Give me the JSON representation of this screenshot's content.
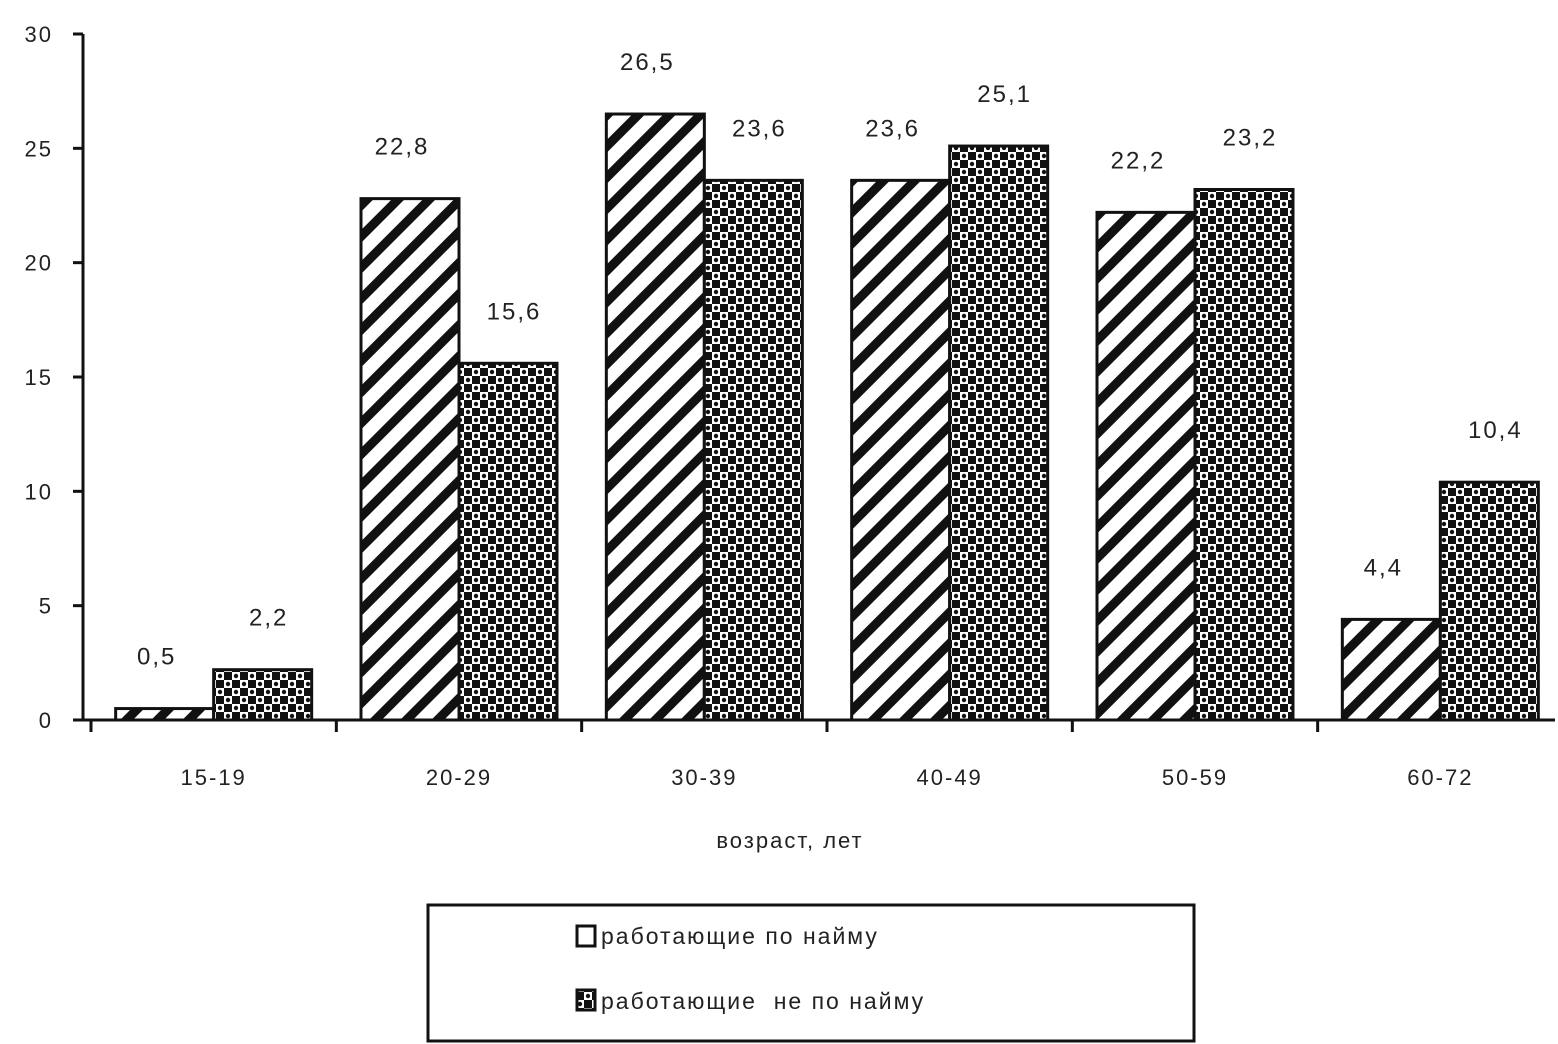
{
  "chart_data": {
    "type": "bar",
    "categories": [
      "15-19",
      "20-29",
      "30-39",
      "40-49",
      "50-59",
      "60-72"
    ],
    "series": [
      {
        "name": "работающие по найму",
        "values": [
          0.5,
          22.8,
          26.5,
          23.6,
          22.2,
          4.4
        ],
        "labels": [
          "0,5",
          "22,8",
          "26,5",
          "23,6",
          "22,2",
          "4,4"
        ],
        "pattern": "diagonal-hatch"
      },
      {
        "name": "работающие  не по найму",
        "values": [
          2.2,
          15.6,
          23.6,
          25.1,
          23.2,
          10.4
        ],
        "labels": [
          "2,2",
          "15,6",
          "23,6",
          "25,1",
          "23,2",
          "10,4"
        ],
        "pattern": "checker-dots"
      }
    ],
    "y_ticks": [
      "0",
      "5",
      "10",
      "15",
      "20",
      "25",
      "30"
    ],
    "ylim": [
      0,
      30
    ],
    "xlabel": "возраст, лет",
    "ylabel": "",
    "title": "",
    "legend_position": "bottom-center",
    "grid": false
  },
  "colors": {
    "ink": "#111111",
    "background": "#ffffff"
  }
}
